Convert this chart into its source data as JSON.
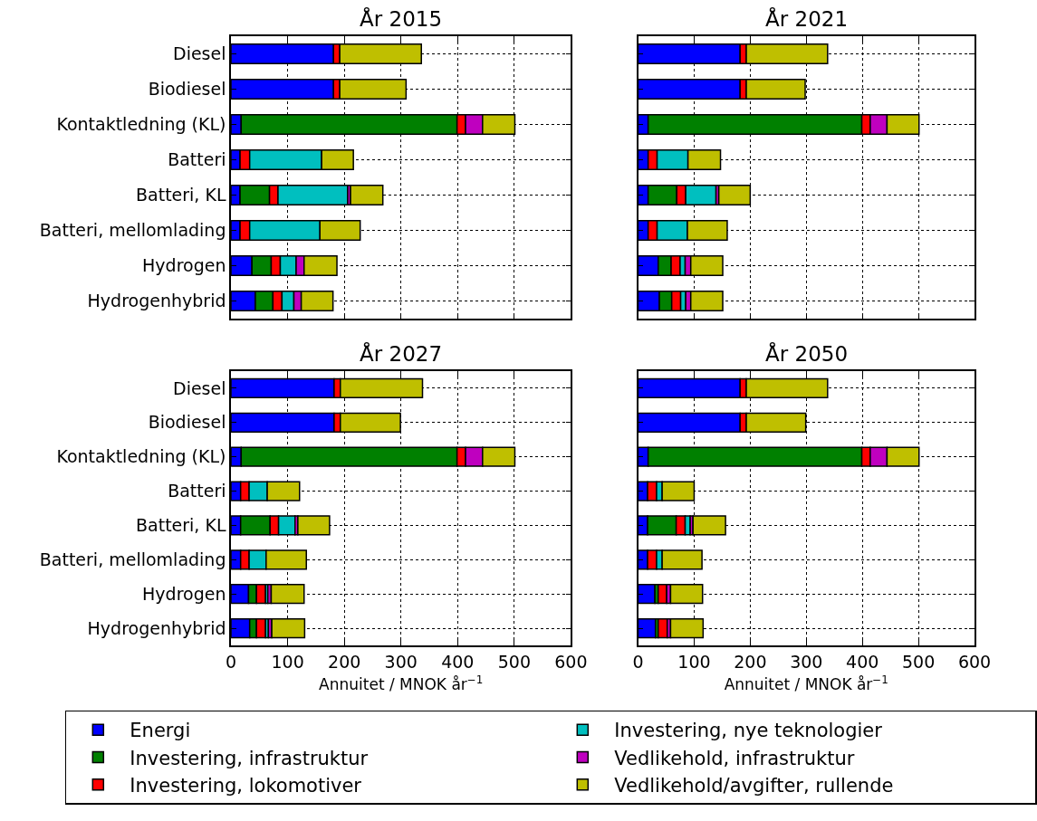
{
  "chart_data": [
    {
      "type": "bar",
      "title": "År 2015",
      "orientation": "horizontal",
      "stacked": true,
      "grid": true,
      "legend": "bottom",
      "tick_labels": "y",
      "xlim": [
        0,
        600
      ],
      "xticks": [
        0,
        100,
        200,
        300,
        400,
        500,
        600
      ],
      "categories": [
        "Diesel",
        "Biodiesel",
        "Kontaktledning (KL)",
        "Batteri",
        "Batteri, KL",
        "Batteri, mellomlading",
        "Hydrogen",
        "Hydrogenhybrid"
      ],
      "series": [
        {
          "name": "Energi",
          "color": "#0000ff",
          "values": [
            181,
            181,
            18,
            16,
            16,
            16,
            37,
            43
          ]
        },
        {
          "name": "Investering, infrastruktur",
          "color": "#008000",
          "values": [
            null,
            null,
            381,
            null,
            52,
            null,
            34,
            31
          ]
        },
        {
          "name": "Investering, lokomotiver",
          "color": "#ff0000",
          "values": [
            11,
            11,
            15,
            17,
            15,
            17,
            16,
            16
          ]
        },
        {
          "name": "Investering, nye teknologier",
          "color": "#00bfbf",
          "values": [
            null,
            null,
            null,
            127,
            123,
            124,
            28,
            21
          ]
        },
        {
          "name": "Vedlikehold, infrastruktur",
          "color": "#bf00bf",
          "values": [
            null,
            null,
            30,
            null,
            5,
            null,
            14,
            13
          ]
        },
        {
          "name": "Vedlikehold/avgifter, rullende",
          "color": "#bfbf00",
          "values": [
            144,
            117,
            57,
            56,
            57,
            71,
            58,
            56
          ]
        }
      ]
    },
    {
      "type": "bar",
      "title": "År 2021",
      "orientation": "horizontal",
      "stacked": true,
      "grid": true,
      "tick_labels": false,
      "xlim": [
        0,
        600
      ],
      "xticks": [
        0,
        100,
        200,
        300,
        400,
        500,
        600
      ],
      "categories": [
        "Diesel",
        "Biodiesel",
        "Kontaktledning (KL)",
        "Batteri",
        "Batteri, KL",
        "Batteri, mellomlading",
        "Hydrogen",
        "Hydrogenhybrid"
      ],
      "series": [
        {
          "name": "Energi",
          "color": "#0000ff",
          "values": [
            182,
            182,
            18,
            18,
            18,
            18,
            36,
            38
          ]
        },
        {
          "name": "Investering, infrastruktur",
          "color": "#008000",
          "values": [
            null,
            null,
            381,
            null,
            51,
            null,
            23,
            22
          ]
        },
        {
          "name": "Investering, lokomotiver",
          "color": "#ff0000",
          "values": [
            11,
            11,
            15,
            16,
            16,
            16,
            16,
            16
          ]
        },
        {
          "name": "Investering, nye teknologier",
          "color": "#00bfbf",
          "values": [
            null,
            null,
            null,
            55,
            54,
            54,
            9,
            9
          ]
        },
        {
          "name": "Vedlikehold, infrastruktur",
          "color": "#bf00bf",
          "values": [
            null,
            null,
            30,
            null,
            5,
            null,
            10,
            9
          ]
        },
        {
          "name": "Vedlikehold/avgifter, rullende",
          "color": "#bfbf00",
          "values": [
            145,
            105,
            57,
            58,
            56,
            71,
            57,
            57
          ]
        }
      ]
    },
    {
      "type": "bar",
      "title": "År 2027",
      "orientation": "horizontal",
      "stacked": true,
      "grid": true,
      "xlabel": "Annuitet / MNOK år$^{−1}$",
      "xlim": [
        0,
        600
      ],
      "xticks": [
        0,
        100,
        200,
        300,
        400,
        500,
        600
      ],
      "categories": [
        "Diesel",
        "Biodiesel",
        "Kontaktledning (KL)",
        "Batteri",
        "Batteri, KL",
        "Batteri, mellomlading",
        "Hydrogen",
        "Hydrogenhybrid"
      ],
      "series": [
        {
          "name": "Energi",
          "color": "#0000ff",
          "values": [
            182,
            182,
            18,
            17,
            17,
            17,
            31,
            33
          ]
        },
        {
          "name": "Investering, infrastruktur",
          "color": "#008000",
          "values": [
            null,
            null,
            381,
            null,
            52,
            null,
            14,
            12
          ]
        },
        {
          "name": "Investering, lokomotiver",
          "color": "#ff0000",
          "values": [
            11,
            11,
            15,
            15,
            15,
            15,
            16,
            16
          ]
        },
        {
          "name": "Investering, nye teknologier",
          "color": "#00bfbf",
          "values": [
            null,
            null,
            null,
            32,
            29,
            30,
            4,
            5
          ]
        },
        {
          "name": "Vedlikehold, infrastruktur",
          "color": "#bf00bf",
          "values": [
            null,
            null,
            30,
            null,
            5,
            null,
            6,
            6
          ]
        },
        {
          "name": "Vedlikehold/avgifter, rullende",
          "color": "#bfbf00",
          "values": [
            145,
            106,
            57,
            57,
            56,
            71,
            58,
            58
          ]
        }
      ]
    },
    {
      "type": "bar",
      "title": "År 2050",
      "orientation": "horizontal",
      "stacked": true,
      "grid": true,
      "tick_labels": "x",
      "xlabel": "Annuitet / MNOK år$^{−1}$",
      "xlim": [
        0,
        600
      ],
      "xticks": [
        0,
        100,
        200,
        300,
        400,
        500,
        600
      ],
      "categories": [
        "Diesel",
        "Biodiesel",
        "Kontaktledning (KL)",
        "Batteri",
        "Batteri, KL",
        "Batteri, mellomlading",
        "Hydrogen",
        "Hydrogenhybrid"
      ],
      "series": [
        {
          "name": "Energi",
          "color": "#0000ff",
          "values": [
            182,
            182,
            18,
            17,
            17,
            17,
            30,
            31
          ]
        },
        {
          "name": "Investering, infrastruktur",
          "color": "#008000",
          "values": [
            null,
            null,
            381,
            null,
            51,
            null,
            6,
            5
          ]
        },
        {
          "name": "Investering, lokomotiver",
          "color": "#ff0000",
          "values": [
            11,
            11,
            15,
            16,
            16,
            16,
            15,
            16
          ]
        },
        {
          "name": "Investering, nye teknologier",
          "color": "#00bfbf",
          "values": [
            null,
            null,
            null,
            10,
            9,
            10,
            null,
            null
          ]
        },
        {
          "name": "Vedlikehold, infrastruktur",
          "color": "#bf00bf",
          "values": [
            null,
            null,
            30,
            null,
            5,
            null,
            7,
            6
          ]
        },
        {
          "name": "Vedlikehold/avgifter, rullende",
          "color": "#bfbf00",
          "values": [
            145,
            106,
            57,
            57,
            58,
            71,
            57,
            58
          ]
        }
      ]
    }
  ]
}
